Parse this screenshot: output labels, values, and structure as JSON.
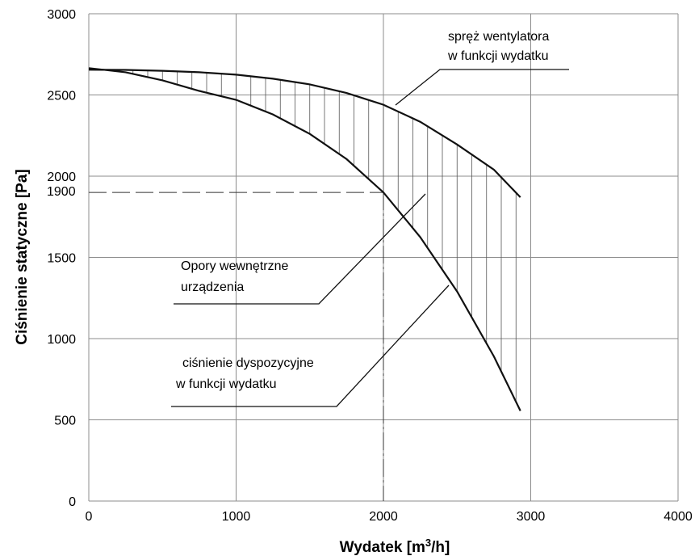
{
  "chart_data": {
    "type": "line",
    "title": "",
    "xlabel_main": "Wydatek [m",
    "xlabel_sup": "3",
    "xlabel_tail": "/h]",
    "ylabel": "Ciśnienie statyczne [Pa]",
    "xlim": [
      0,
      4000
    ],
    "ylim": [
      0,
      3000
    ],
    "grid": true,
    "x_ticks": [
      {
        "value": 0,
        "label": "0"
      },
      {
        "value": 1000,
        "label": "1000"
      },
      {
        "value": 2000,
        "label": "2000"
      },
      {
        "value": 3000,
        "label": "3000"
      },
      {
        "value": 4000,
        "label": "4000"
      }
    ],
    "y_ticks": [
      {
        "value": 0,
        "label": "0"
      },
      {
        "value": 500,
        "label": "500"
      },
      {
        "value": 1000,
        "label": "1000"
      },
      {
        "value": 1500,
        "label": "1500"
      },
      {
        "value": 2000,
        "label": "2000"
      },
      {
        "value": 2500,
        "label": "2500"
      },
      {
        "value": 3000,
        "label": "3000"
      }
    ],
    "series": [
      {
        "key": "fan",
        "x": [
          0,
          250,
          500,
          750,
          1000,
          1250,
          1500,
          1750,
          2000,
          2250,
          2500,
          2750,
          2930
        ],
        "y": [
          2655,
          2654,
          2649,
          2640,
          2625,
          2600,
          2565,
          2512,
          2440,
          2335,
          2195,
          2040,
          1870
        ]
      },
      {
        "key": "available",
        "x": [
          0,
          250,
          500,
          750,
          1000,
          1250,
          1500,
          1750,
          2000,
          2250,
          2500,
          2750,
          2930
        ],
        "y": [
          2665,
          2640,
          2590,
          2525,
          2470,
          2380,
          2260,
          2105,
          1900,
          1625,
          1290,
          890,
          555
        ]
      }
    ],
    "reference": {
      "x": 2000,
      "y": 1900,
      "y_label": "1900"
    },
    "annotations": {
      "fan_line1": "spręż wentylatora",
      "fan_line2": "w funkcji wydatku",
      "internal_line1": "Opory wewnętrzne",
      "internal_line2": "urządzenia",
      "available_line1": "ciśnienie dyspozycyjne",
      "available_line2": "w funkcji wydatku"
    }
  }
}
